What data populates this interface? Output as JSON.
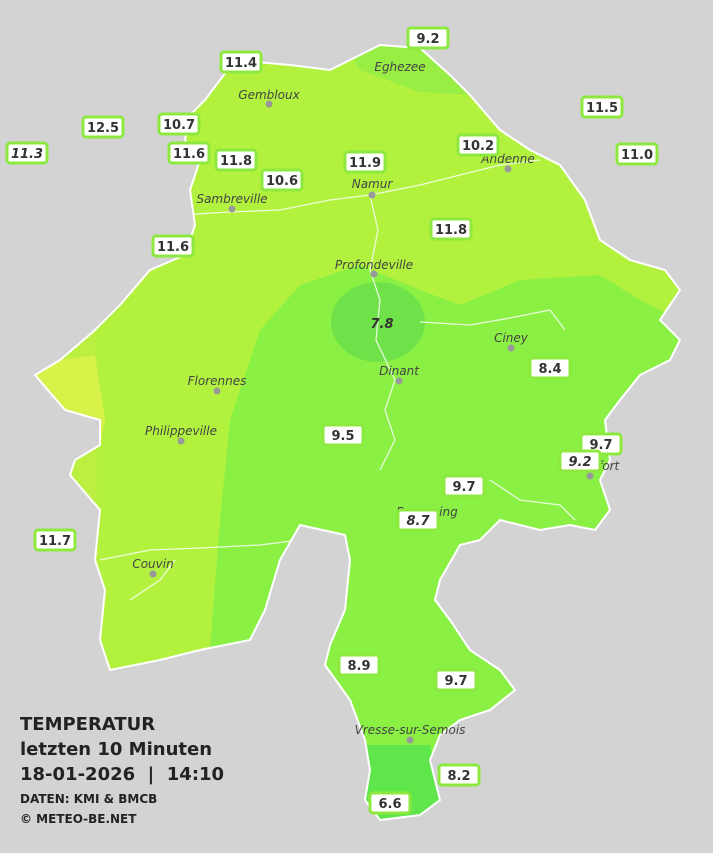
{
  "places": [
    "Eghezee",
    "Gembloux",
    "Andenne",
    "Namur",
    "Sambreville",
    "Profondeville",
    "Ciney",
    "Dinant",
    "Florennes",
    "Philippeville",
    "Rochefort",
    "Beauraing",
    "Couvin",
    "Vresse-sur-Semois"
  ],
  "readings": [
    "9.2",
    "11.4",
    "12.5",
    "11.3",
    "10.7",
    "11.6",
    "11.8",
    "10.6",
    "11.9",
    "10.2",
    "11.5",
    "11.0",
    "11.6",
    "11.8",
    "7.8",
    "8.4",
    "9.5",
    "9.7",
    "9.2",
    "9.7",
    "8.7",
    "11.7",
    "8.9",
    "9.7",
    "8.2",
    "6.6"
  ],
  "legend": {
    "title": "TEMPERATUR",
    "period": "letzten 10 Minuten",
    "timestamp": "18-01-2026  |  14:10",
    "source": "DATEN: KMI & BMCB",
    "copyright": "© METEO-BE.NET"
  }
}
